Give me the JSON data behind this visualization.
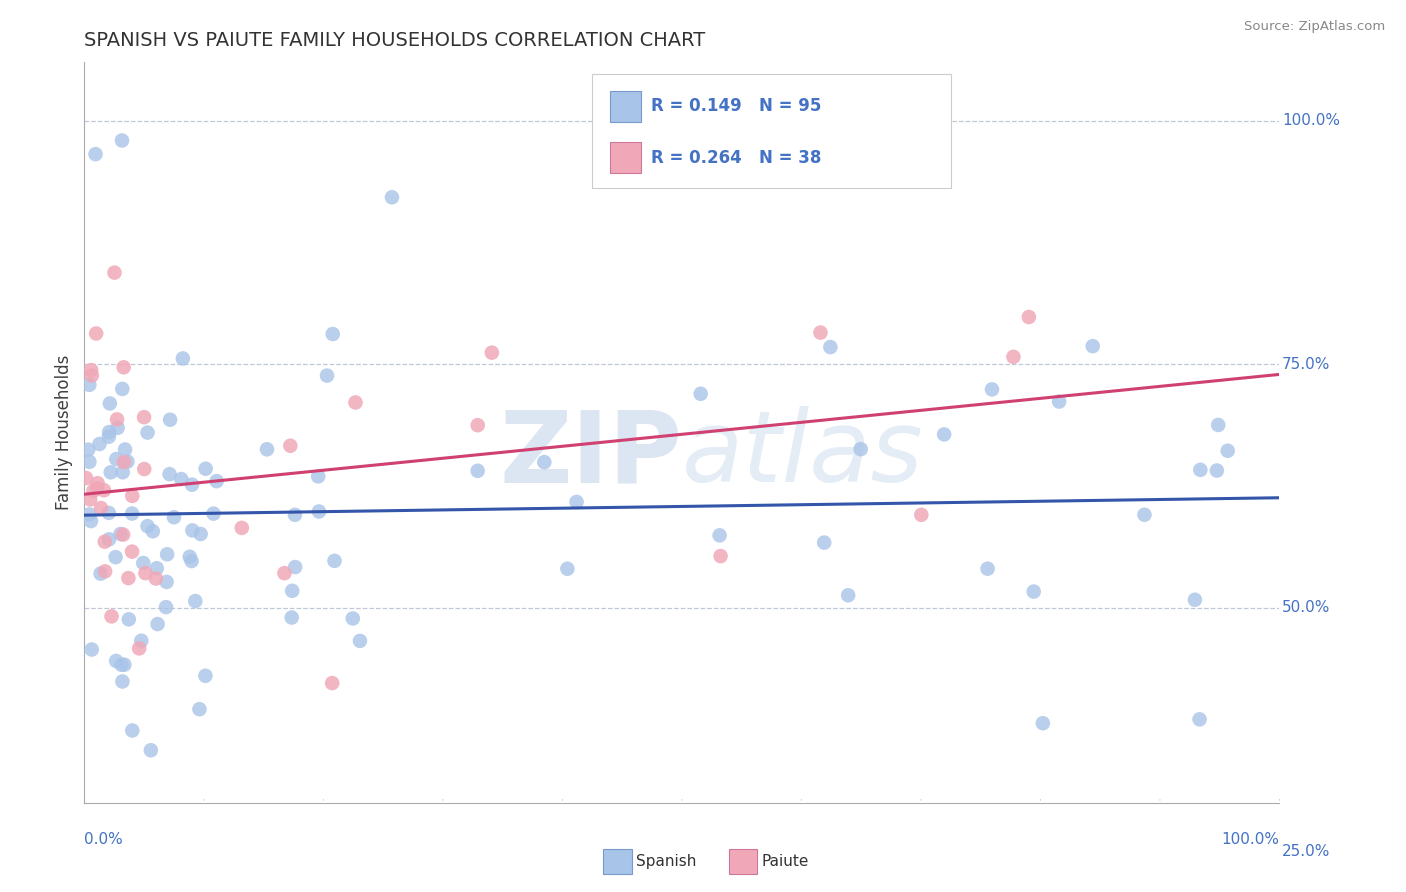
{
  "title": "SPANISH VS PAIUTE FAMILY HOUSEHOLDS CORRELATION CHART",
  "source": "Source: ZipAtlas.com",
  "ylabel": "Family Households",
  "ytick_labels": [
    "100.0%",
    "75.0%",
    "50.0%",
    "25.0%"
  ],
  "ytick_values": [
    1.0,
    0.75,
    0.5,
    0.25
  ],
  "xlim": [
    0.0,
    1.0
  ],
  "ylim": [
    0.3,
    1.06
  ],
  "legend_text_spanish": "R = 0.149   N = 95",
  "legend_text_paiute": "R = 0.264   N = 38",
  "spanish_color": "#a8c4e8",
  "paiute_color": "#f0a8b8",
  "spanish_line_color": "#3355aa",
  "paiute_line_color": "#d04070",
  "title_color": "#333333",
  "axis_label_color": "#4472c4",
  "background_color": "#ffffff",
  "grid_color": "#c0c8d8",
  "watermark_zip": "ZIP",
  "watermark_atlas": "atlas",
  "marker_size": 110
}
